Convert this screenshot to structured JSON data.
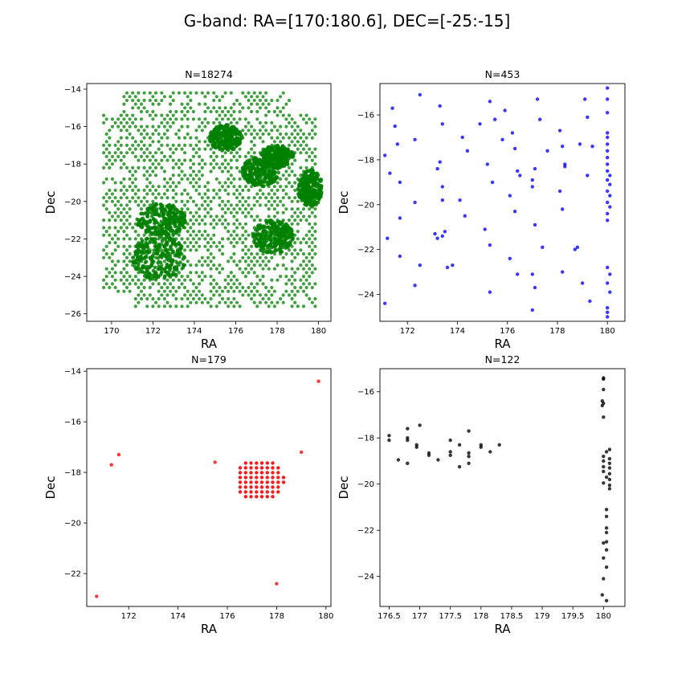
{
  "figure": {
    "title": "G-band: RA=[170:180.6], DEC=[-25:-15]"
  },
  "chart_data": [
    {
      "type": "scatter",
      "title": "N=18274",
      "xlabel": "RA",
      "ylabel": "Dec",
      "xlim": [
        168.8,
        180.6
      ],
      "ylim": [
        -26.4,
        -13.7
      ],
      "xticks": [
        170,
        172,
        174,
        176,
        178,
        180
      ],
      "yticks": [
        -26,
        -24,
        -22,
        -20,
        -18,
        -16,
        -14
      ],
      "color": "#008000",
      "regions": [
        {
          "cx": 172.3,
          "cy": -23.0,
          "rx": 1.3,
          "ry": 1.2
        },
        {
          "cx": 172.4,
          "cy": -21.0,
          "rx": 1.2,
          "ry": 0.9
        },
        {
          "cx": 177.2,
          "cy": -18.4,
          "rx": 0.9,
          "ry": 0.8
        },
        {
          "cx": 178.0,
          "cy": -17.6,
          "rx": 0.8,
          "ry": 0.6
        },
        {
          "cx": 179.6,
          "cy": -19.3,
          "rx": 0.6,
          "ry": 1.0
        },
        {
          "cx": 177.8,
          "cy": -21.9,
          "rx": 1.0,
          "ry": 0.9
        },
        {
          "cx": 175.5,
          "cy": -16.6,
          "rx": 0.8,
          "ry": 0.7
        }
      ]
    },
    {
      "type": "scatter",
      "title": "N=453",
      "xlabel": "RA",
      "ylabel": "Dec",
      "xlim": [
        170.9,
        180.7
      ],
      "ylim": [
        -25.2,
        -14.6
      ],
      "xticks": [
        172,
        174,
        176,
        178,
        180
      ],
      "yticks": [
        -24,
        -22,
        -20,
        -18,
        -16
      ],
      "color": "#0000ff",
      "points": [
        [
          171.1,
          -17.8
        ],
        [
          171.2,
          -21.5
        ],
        [
          171.1,
          -24.4
        ],
        [
          171.3,
          -18.6
        ],
        [
          171.4,
          -15.7
        ],
        [
          171.5,
          -16.5
        ],
        [
          171.6,
          -17.3
        ],
        [
          171.7,
          -19.0
        ],
        [
          171.7,
          -20.6
        ],
        [
          171.7,
          -22.3
        ],
        [
          172.3,
          -17.1
        ],
        [
          172.3,
          -23.6
        ],
        [
          172.5,
          -15.1
        ],
        [
          172.5,
          -22.7
        ],
        [
          172.3,
          -19.9
        ],
        [
          173.1,
          -21.3
        ],
        [
          173.2,
          -21.5
        ],
        [
          173.2,
          -18.4
        ],
        [
          173.3,
          -18.1
        ],
        [
          173.3,
          -15.6
        ],
        [
          173.4,
          -16.4
        ],
        [
          173.4,
          -19.2
        ],
        [
          173.4,
          -19.8
        ],
        [
          173.4,
          -21.4
        ],
        [
          173.5,
          -21.2
        ],
        [
          173.6,
          -22.8
        ],
        [
          173.8,
          -22.7
        ],
        [
          174.1,
          -19.8
        ],
        [
          174.2,
          -17.0
        ],
        [
          174.3,
          -20.5
        ],
        [
          174.4,
          -17.6
        ],
        [
          174.9,
          -16.4
        ],
        [
          175.1,
          -21.1
        ],
        [
          175.2,
          -18.2
        ],
        [
          175.3,
          -15.4
        ],
        [
          175.3,
          -21.8
        ],
        [
          175.3,
          -23.9
        ],
        [
          175.4,
          -19.0
        ],
        [
          175.5,
          -16.2
        ],
        [
          175.8,
          -17.1
        ],
        [
          175.9,
          -15.8
        ],
        [
          176.1,
          -22.4
        ],
        [
          176.2,
          -16.8
        ],
        [
          176.3,
          -20.3
        ],
        [
          176.3,
          -17.5
        ],
        [
          176.1,
          -19.6
        ],
        [
          176.4,
          -18.5
        ],
        [
          176.5,
          -18.7
        ],
        [
          176.4,
          -23.1
        ],
        [
          177.0,
          -23.1
        ],
        [
          177.0,
          -24.7
        ],
        [
          177.0,
          -19.2
        ],
        [
          177.0,
          -18.9
        ],
        [
          177.1,
          -18.4
        ],
        [
          177.1,
          -20.9
        ],
        [
          177.1,
          -23.7
        ],
        [
          177.2,
          -15.3
        ],
        [
          177.3,
          -16.2
        ],
        [
          177.4,
          -21.9
        ],
        [
          177.6,
          -17.6
        ],
        [
          178.1,
          -16.7
        ],
        [
          178.1,
          -19.4
        ],
        [
          178.2,
          -20.2
        ],
        [
          178.2,
          -17.4
        ],
        [
          178.2,
          -23.0
        ],
        [
          178.3,
          -18.3
        ],
        [
          178.3,
          -18.2
        ],
        [
          178.7,
          -22.0
        ],
        [
          178.8,
          -21.9
        ],
        [
          178.9,
          -17.3
        ],
        [
          179.0,
          -23.5
        ],
        [
          179.1,
          -15.3
        ],
        [
          179.2,
          -16.1
        ],
        [
          179.2,
          -18.7
        ],
        [
          179.3,
          -24.3
        ],
        [
          179.4,
          -17.4
        ],
        [
          180.0,
          -14.8
        ],
        [
          180.0,
          -15.3
        ],
        [
          180.0,
          -15.9
        ],
        [
          180.0,
          -16.8
        ],
        [
          180.0,
          -17.0
        ],
        [
          180.0,
          -17.3
        ],
        [
          180.0,
          -17.6
        ],
        [
          180.0,
          -17.9
        ],
        [
          180.0,
          -18.2
        ],
        [
          180.0,
          -18.5
        ],
        [
          180.1,
          -18.7
        ],
        [
          180.0,
          -18.9
        ],
        [
          180.1,
          -19.1
        ],
        [
          180.0,
          -19.4
        ],
        [
          180.1,
          -19.6
        ],
        [
          180.0,
          -19.9
        ],
        [
          180.1,
          -20.1
        ],
        [
          180.0,
          -20.4
        ],
        [
          180.0,
          -20.7
        ],
        [
          180.0,
          -22.8
        ],
        [
          180.1,
          -23.1
        ],
        [
          180.0,
          -23.5
        ],
        [
          180.1,
          -23.9
        ],
        [
          180.0,
          -24.6
        ],
        [
          180.0,
          -24.8
        ],
        [
          180.0,
          -25.0
        ]
      ]
    },
    {
      "type": "scatter",
      "title": "N=179",
      "xlabel": "RA",
      "ylabel": "Dec",
      "xlim": [
        170.3,
        180.2
      ],
      "ylim": [
        -23.3,
        -13.9
      ],
      "xticks": [
        172,
        174,
        176,
        178,
        180
      ],
      "yticks": [
        -22,
        -20,
        -18,
        -16,
        -14
      ],
      "color": "#ff0000",
      "points": [
        [
          170.7,
          -22.9
        ],
        [
          171.3,
          -17.7
        ],
        [
          171.6,
          -17.3
        ],
        [
          175.5,
          -17.6
        ],
        [
          178.0,
          -22.4
        ],
        [
          179.0,
          -17.2
        ],
        [
          179.7,
          -14.4
        ]
      ],
      "cluster": {
        "cx": 177.3,
        "cy": -18.3,
        "rx": 1.0,
        "ry": 0.85
      }
    },
    {
      "type": "scatter",
      "title": "N=122",
      "xlabel": "RA",
      "ylabel": "Dec",
      "xlim": [
        176.35,
        180.35
      ],
      "ylim": [
        -25.3,
        -15.0
      ],
      "xticks": [
        176.5,
        177.0,
        177.5,
        178.0,
        178.5,
        179.0,
        179.5,
        180.0
      ],
      "yticks": [
        -24,
        -22,
        -20,
        -18,
        -16
      ],
      "color": "#000000",
      "points": [
        [
          176.5,
          -17.9
        ],
        [
          176.5,
          -18.1
        ],
        [
          176.65,
          -18.95
        ],
        [
          176.8,
          -17.6
        ],
        [
          176.8,
          -18.0
        ],
        [
          176.8,
          -18.1
        ],
        [
          176.8,
          -19.1
        ],
        [
          176.95,
          -18.3
        ],
        [
          176.95,
          -18.4
        ],
        [
          177.0,
          -17.45
        ],
        [
          177.15,
          -18.65
        ],
        [
          177.15,
          -18.75
        ],
        [
          177.3,
          -18.95
        ],
        [
          177.5,
          -18.1
        ],
        [
          177.5,
          -18.6
        ],
        [
          177.5,
          -18.75
        ],
        [
          177.65,
          -18.3
        ],
        [
          177.65,
          -19.25
        ],
        [
          177.8,
          -17.7
        ],
        [
          177.8,
          -18.65
        ],
        [
          177.8,
          -18.8
        ],
        [
          177.8,
          -19.1
        ],
        [
          178.0,
          -18.3
        ],
        [
          178.0,
          -18.4
        ],
        [
          178.15,
          -18.6
        ],
        [
          178.3,
          -18.3
        ],
        [
          180.0,
          -15.4
        ],
        [
          180.0,
          -15.45
        ],
        [
          180.0,
          -15.9
        ],
        [
          179.98,
          -16.4
        ],
        [
          179.98,
          -16.6
        ],
        [
          180.0,
          -16.5
        ],
        [
          180.0,
          -17.1
        ],
        [
          180.05,
          -18.6
        ],
        [
          180.1,
          -18.5
        ],
        [
          180.0,
          -18.8
        ],
        [
          180.1,
          -18.9
        ],
        [
          180.0,
          -19.0
        ],
        [
          180.1,
          -19.1
        ],
        [
          180.0,
          -19.25
        ],
        [
          180.1,
          -19.3
        ],
        [
          180.0,
          -19.45
        ],
        [
          180.1,
          -19.55
        ],
        [
          180.05,
          -19.7
        ],
        [
          180.1,
          -19.8
        ],
        [
          180.0,
          -19.95
        ],
        [
          180.1,
          -20.05
        ],
        [
          180.1,
          -20.2
        ],
        [
          180.05,
          -21.1
        ],
        [
          180.05,
          -21.4
        ],
        [
          180.05,
          -21.9
        ],
        [
          180.05,
          -22.1
        ],
        [
          180.05,
          -22.5
        ],
        [
          180.0,
          -22.55
        ],
        [
          180.05,
          -22.85
        ],
        [
          180.0,
          -23.2
        ],
        [
          180.05,
          -23.6
        ],
        [
          180.0,
          -24.1
        ],
        [
          179.98,
          -24.8
        ],
        [
          180.05,
          -25.05
        ]
      ]
    }
  ]
}
